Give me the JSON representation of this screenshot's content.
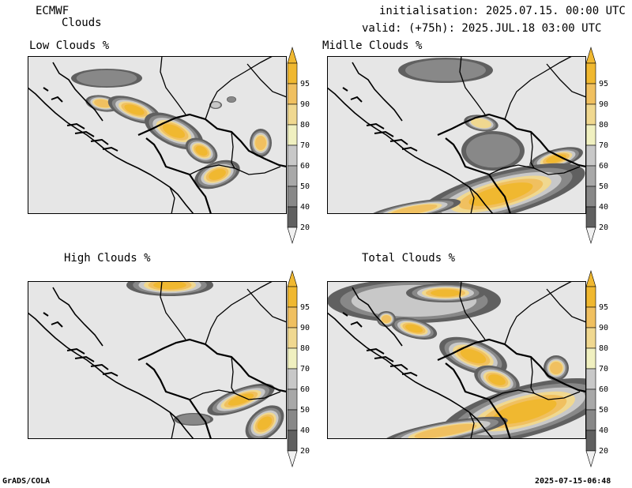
{
  "header": {
    "model": "ECMWF",
    "product": "Clouds",
    "init_label": "initialisation: 2025.07.15. 00:00 UTC",
    "valid_label": "valid: (+75h): 2025.JUL.18 03:00 UTC"
  },
  "panels": [
    {
      "title": "Low Clouds %"
    },
    {
      "title": "Midlle Clouds %"
    },
    {
      "title": "High Clouds %"
    },
    {
      "title": "Total Clouds %"
    }
  ],
  "colorbar": {
    "levels": [
      "95",
      "90",
      "80",
      "70",
      "60",
      "50",
      "40",
      "20"
    ],
    "colors": [
      "#f0b830",
      "#f0c060",
      "#f0d890",
      "#f0f0c0",
      "#c8c8c8",
      "#a8a8a8",
      "#888888",
      "#606060",
      "#f0f0f0"
    ]
  },
  "footer": {
    "left": "GrADS/COLA",
    "right": "2025-07-15-06:48"
  }
}
